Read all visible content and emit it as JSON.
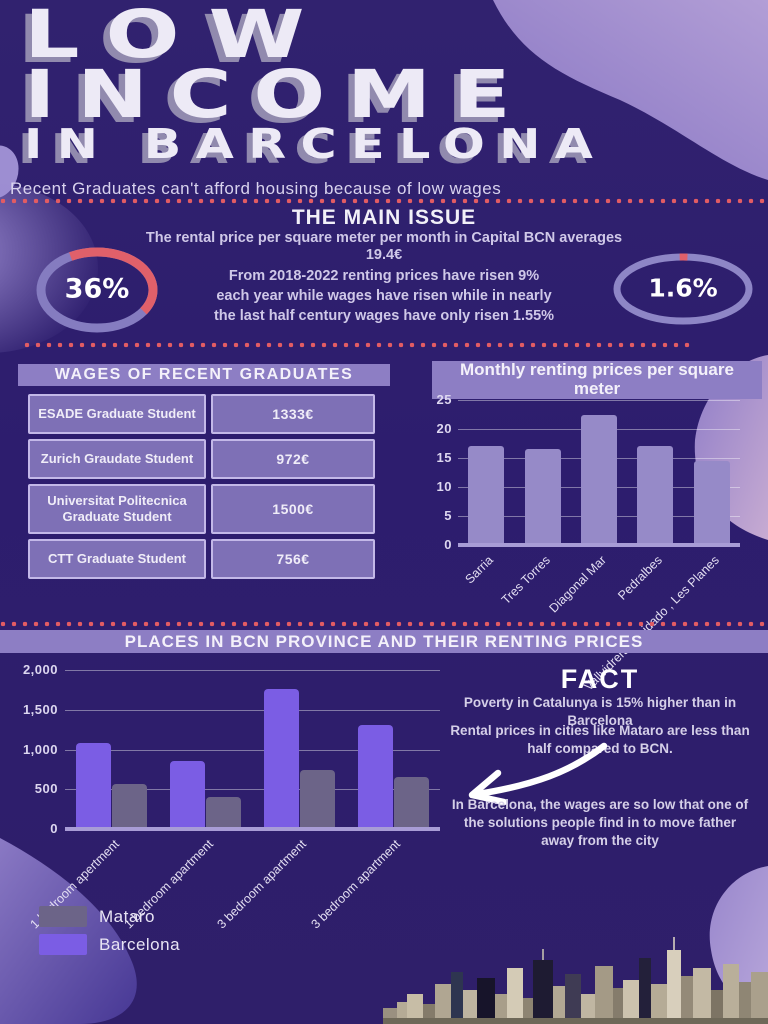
{
  "header": {
    "title_lines": [
      "LOW",
      "INCOME",
      "IN BARCELONA"
    ],
    "subtitle": "Recent Graduates can't afford housing because of low wages"
  },
  "main_issue": {
    "heading": "THE MAIN ISSUE",
    "intro_lines": [
      "The rental price per square meter per month in Capital BCN averages",
      "19.4€"
    ],
    "body_lines": [
      "From 2018-2022 renting prices have risen 9%",
      "each year while wages have risen while in nearly",
      "the last half century wages have only risen 1.55%"
    ],
    "stat_left": "36%",
    "stat_right": "1.6%"
  },
  "wages_table": {
    "title": "WAGES OF RECENT GRADUATES",
    "rows": [
      {
        "label": "ESADE Graduate Student",
        "value": "1333€"
      },
      {
        "label": "Zurich Graudate Student",
        "value": "972€"
      },
      {
        "label": "Universitat Politecnica Graduate Student",
        "value": "1500€"
      },
      {
        "label": "CTT Graduate Student",
        "value": "756€"
      }
    ]
  },
  "chart_data": [
    {
      "type": "bar",
      "title": "Monthly renting prices per square meter",
      "categories": [
        "Sarria",
        "Tres Torres",
        "Diagonal Mar",
        "Pedralbes",
        "Vallvidrera, Tibidado , Les Planes"
      ],
      "values": [
        17,
        16.5,
        22.5,
        17,
        14.5
      ],
      "ylim": [
        0,
        25
      ],
      "yticks": [
        "25",
        "20",
        "15",
        "10",
        "5",
        "0"
      ],
      "bar_color": "#968ac8",
      "grid": true,
      "legend_position": "none"
    },
    {
      "type": "bar",
      "title": "PLACES IN BCN PROVINCE AND THEIR RENTING PRICES",
      "categories": [
        "1 bedroom apertment",
        "1 bedroom apartment",
        "3 bedroom apartment",
        "3 bedroom apartment"
      ],
      "series": [
        {
          "name": "Barcelona",
          "color": "#7b5de4",
          "values": [
            1080,
            850,
            1760,
            1310
          ]
        },
        {
          "name": "Mataro",
          "color": "#6c6488",
          "values": [
            560,
            400,
            740,
            660
          ]
        }
      ],
      "ylim": [
        0,
        2000
      ],
      "yticks": [
        "2,000",
        "1,500",
        "1,000",
        "500",
        "0"
      ],
      "legend": [
        {
          "label": "Mataro",
          "color": "#6c6488"
        },
        {
          "label": "Barcelona",
          "color": "#7b5de4"
        }
      ],
      "legend_position": "bottom-left",
      "grid": true
    }
  ],
  "fact": {
    "heading": "FACT",
    "paragraph1": "Poverty in Catalunya is 15% higher than in Barcelona",
    "paragraph2": "Rental prices in cities like Mataro are less than half compared to BCN.",
    "paragraph3": "In Barcelona, the wages are so low that one of the solutions people find in to move father away from the city"
  },
  "colors": {
    "background": "#2e1e70",
    "accent_coral": "#e25c63",
    "lavender_blob": "#9181cb",
    "banner": "#8d7ec4",
    "table_cell": "#7e70b6",
    "ring_lavender": "#8b82c6"
  }
}
